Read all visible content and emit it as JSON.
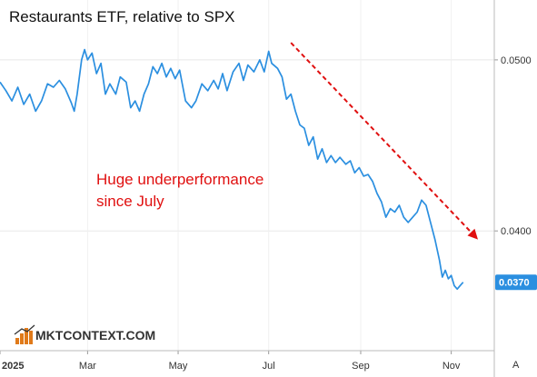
{
  "chart_data": {
    "type": "line",
    "title": "Restaurants ETF, relative to SPX",
    "xlabel": "",
    "ylabel": "",
    "x_range": [
      "2025-01-01",
      "2025-11-30"
    ],
    "ylim": [
      0.033,
      0.0535
    ],
    "y_ticks": [
      {
        "value": 0.05,
        "label": "0.0500"
      },
      {
        "value": 0.04,
        "label": "0.0400"
      }
    ],
    "x_ticks": [
      {
        "date": "2025-01-01",
        "label": "2025",
        "bold": true
      },
      {
        "date": "2025-03-01",
        "label": "Mar"
      },
      {
        "date": "2025-05-01",
        "label": "May"
      },
      {
        "date": "2025-07-01",
        "label": "Jul"
      },
      {
        "date": "2025-09-01",
        "label": "Sep"
      },
      {
        "date": "2025-11-01",
        "label": "Nov"
      }
    ],
    "grid": true,
    "legend": "none",
    "series": [
      {
        "color": "#2b8fe0",
        "points": [
          [
            "2025-01-01",
            0.0487
          ],
          [
            "2025-01-05",
            0.0482
          ],
          [
            "2025-01-09",
            0.0476
          ],
          [
            "2025-01-13",
            0.0484
          ],
          [
            "2025-01-17",
            0.0474
          ],
          [
            "2025-01-21",
            0.048
          ],
          [
            "2025-01-25",
            0.047
          ],
          [
            "2025-01-29",
            0.0476
          ],
          [
            "2025-02-02",
            0.0486
          ],
          [
            "2025-02-06",
            0.0484
          ],
          [
            "2025-02-10",
            0.0488
          ],
          [
            "2025-02-14",
            0.0483
          ],
          [
            "2025-02-18",
            0.0475
          ],
          [
            "2025-02-20",
            0.047
          ],
          [
            "2025-02-22",
            0.048
          ],
          [
            "2025-02-25",
            0.05
          ],
          [
            "2025-02-27",
            0.0506
          ],
          [
            "2025-03-01",
            0.05
          ],
          [
            "2025-03-04",
            0.0504
          ],
          [
            "2025-03-07",
            0.0492
          ],
          [
            "2025-03-10",
            0.0498
          ],
          [
            "2025-03-13",
            0.048
          ],
          [
            "2025-03-16",
            0.0486
          ],
          [
            "2025-03-20",
            0.048
          ],
          [
            "2025-03-23",
            0.049
          ],
          [
            "2025-03-27",
            0.0487
          ],
          [
            "2025-03-30",
            0.0472
          ],
          [
            "2025-04-02",
            0.0476
          ],
          [
            "2025-04-05",
            0.047
          ],
          [
            "2025-04-08",
            0.048
          ],
          [
            "2025-04-11",
            0.0486
          ],
          [
            "2025-04-14",
            0.0496
          ],
          [
            "2025-04-17",
            0.0492
          ],
          [
            "2025-04-20",
            0.0498
          ],
          [
            "2025-04-23",
            0.049
          ],
          [
            "2025-04-26",
            0.0495
          ],
          [
            "2025-04-29",
            0.0489
          ],
          [
            "2025-05-02",
            0.0494
          ],
          [
            "2025-05-06",
            0.0476
          ],
          [
            "2025-05-10",
            0.0472
          ],
          [
            "2025-05-13",
            0.0476
          ],
          [
            "2025-05-17",
            0.0486
          ],
          [
            "2025-05-21",
            0.0482
          ],
          [
            "2025-05-25",
            0.0488
          ],
          [
            "2025-05-28",
            0.0483
          ],
          [
            "2025-05-31",
            0.0492
          ],
          [
            "2025-06-03",
            0.0482
          ],
          [
            "2025-06-07",
            0.0493
          ],
          [
            "2025-06-11",
            0.0498
          ],
          [
            "2025-06-14",
            0.0488
          ],
          [
            "2025-06-17",
            0.0497
          ],
          [
            "2025-06-21",
            0.0493
          ],
          [
            "2025-06-25",
            0.05
          ],
          [
            "2025-06-28",
            0.0493
          ],
          [
            "2025-07-01",
            0.0505
          ],
          [
            "2025-07-03",
            0.0498
          ],
          [
            "2025-07-07",
            0.0495
          ],
          [
            "2025-07-10",
            0.049
          ],
          [
            "2025-07-13",
            0.0477
          ],
          [
            "2025-07-16",
            0.048
          ],
          [
            "2025-07-19",
            0.047
          ],
          [
            "2025-07-22",
            0.0462
          ],
          [
            "2025-07-25",
            0.046
          ],
          [
            "2025-07-28",
            0.045
          ],
          [
            "2025-07-31",
            0.0455
          ],
          [
            "2025-08-03",
            0.0442
          ],
          [
            "2025-08-06",
            0.0448
          ],
          [
            "2025-08-09",
            0.044
          ],
          [
            "2025-08-12",
            0.0444
          ],
          [
            "2025-08-15",
            0.044
          ],
          [
            "2025-08-18",
            0.0443
          ],
          [
            "2025-08-22",
            0.0439
          ],
          [
            "2025-08-25",
            0.0441
          ],
          [
            "2025-08-28",
            0.0434
          ],
          [
            "2025-08-31",
            0.0437
          ],
          [
            "2025-09-03",
            0.0432
          ],
          [
            "2025-09-06",
            0.0433
          ],
          [
            "2025-09-09",
            0.0429
          ],
          [
            "2025-09-12",
            0.0422
          ],
          [
            "2025-09-15",
            0.0417
          ],
          [
            "2025-09-18",
            0.0408
          ],
          [
            "2025-09-21",
            0.0413
          ],
          [
            "2025-09-24",
            0.0411
          ],
          [
            "2025-09-27",
            0.0415
          ],
          [
            "2025-09-30",
            0.0408
          ],
          [
            "2025-10-03",
            0.0405
          ],
          [
            "2025-10-06",
            0.0408
          ],
          [
            "2025-10-09",
            0.0411
          ],
          [
            "2025-10-12",
            0.0418
          ],
          [
            "2025-10-15",
            0.0415
          ],
          [
            "2025-10-18",
            0.0405
          ],
          [
            "2025-10-21",
            0.0395
          ],
          [
            "2025-10-24",
            0.0383
          ],
          [
            "2025-10-26",
            0.0373
          ],
          [
            "2025-10-28",
            0.0377
          ],
          [
            "2025-10-30",
            0.0372
          ],
          [
            "2025-11-01",
            0.0374
          ],
          [
            "2025-11-03",
            0.0368
          ],
          [
            "2025-11-05",
            0.0366
          ],
          [
            "2025-11-07",
            0.0368
          ],
          [
            "2025-11-09",
            0.037
          ]
        ]
      }
    ],
    "last_value": {
      "value": 0.037,
      "label": "0.0370",
      "color": "#2b8fe0"
    },
    "annotations": [
      {
        "text_lines": [
          "Huge underperformance",
          "since July"
        ],
        "color": "#e01010"
      },
      {
        "type": "arrow",
        "from": [
          "2025-07-16",
          0.051
        ],
        "to": [
          "2025-11-19",
          0.0395
        ],
        "color": "#e01010",
        "style": "dashed"
      }
    ]
  },
  "logo": {
    "text": "MKTCONTEXT.COM"
  },
  "scale_button": {
    "label": "A"
  }
}
